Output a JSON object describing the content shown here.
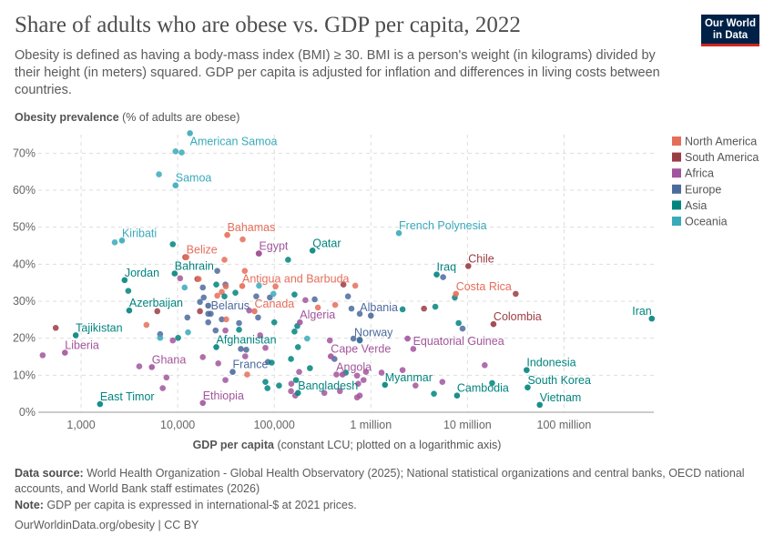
{
  "header": {
    "title": "Share of adults who are obese vs. GDP per capita, 2022",
    "subtitle": "Obesity is defined as having a body-mass index (BMI) ≥ 30. BMI is a person's weight (in kilograms) divided by their height (in meters) squared. GDP per capita is adjusted for inflation and differences in living costs between countries.",
    "logo_text": "Our World in Data"
  },
  "footer": {
    "source_label": "Data source:",
    "source": "World Health Organization - Global Health Observatory (2025); National statistical organizations and central banks, OECD national accounts, and World Bank staff estimates (2026)",
    "note_label": "Note:",
    "note": "GDP per capita is expressed in international-$ at 2021 prices.",
    "url": "OurWorldinData.org/obesity | CC BY"
  },
  "chart_data": {
    "type": "scatter",
    "title": "Share of adults who are obese vs. GDP per capita, 2022",
    "ylabel_bold": "Obesity prevalence",
    "ylabel_rest": "(% of adults are obese)",
    "xlabel_bold": "GDP per capita",
    "xlabel_rest": "(constant LCU; plotted on a logarithmic axis)",
    "x_scale": "log",
    "xlim": [
      360,
      850000000
    ],
    "ylim": [
      0,
      75
    ],
    "x_ticks": [
      {
        "v": 1000,
        "label": "1,000"
      },
      {
        "v": 10000,
        "label": "10,000"
      },
      {
        "v": 100000,
        "label": "100,000"
      },
      {
        "v": 1000000,
        "label": "1 million"
      },
      {
        "v": 10000000,
        "label": "10 million"
      },
      {
        "v": 100000000,
        "label": "100 million"
      }
    ],
    "y_ticks": [
      {
        "v": 0,
        "label": "0%"
      },
      {
        "v": 10,
        "label": "10%"
      },
      {
        "v": 20,
        "label": "20%"
      },
      {
        "v": 30,
        "label": "30%"
      },
      {
        "v": 40,
        "label": "40%"
      },
      {
        "v": 50,
        "label": "50%"
      },
      {
        "v": 60,
        "label": "60%"
      },
      {
        "v": 70,
        "label": "70%"
      }
    ],
    "grid": true,
    "legend_position": "right",
    "legend": [
      {
        "key": "NA",
        "name": "North America",
        "color": "#E56E5A"
      },
      {
        "key": "SA",
        "name": "South America",
        "color": "#9A3C43"
      },
      {
        "key": "AF",
        "name": "Africa",
        "color": "#A2559C"
      },
      {
        "key": "EU",
        "name": "Europe",
        "color": "#4C6A9C"
      },
      {
        "key": "AS",
        "name": "Asia",
        "color": "#00847E"
      },
      {
        "key": "OC",
        "name": "Oceania",
        "color": "#38AABA"
      }
    ],
    "labeled_points": [
      {
        "label": "American Samoa",
        "x": 13400,
        "y": 75.4,
        "region": "OC"
      },
      {
        "label": "Samoa",
        "x": 9500,
        "y": 61.3,
        "region": "OC"
      },
      {
        "label": "Kiribati",
        "x": 2650,
        "y": 46.4,
        "region": "OC"
      },
      {
        "label": "Bahamas",
        "x": 32600,
        "y": 47.9,
        "region": "NA"
      },
      {
        "label": "Belize",
        "x": 12300,
        "y": 41.9,
        "region": "NA"
      },
      {
        "label": "Egypt",
        "x": 69500,
        "y": 42.9,
        "region": "AF"
      },
      {
        "label": "Qatar",
        "x": 249000,
        "y": 43.7,
        "region": "AS"
      },
      {
        "label": "Jordan",
        "x": 2820,
        "y": 35.7,
        "region": "AS"
      },
      {
        "label": "Bahrain",
        "x": 9300,
        "y": 37.5,
        "region": "AS"
      },
      {
        "label": "Antigua and Barbuda",
        "x": 46600,
        "y": 34.1,
        "region": "NA"
      },
      {
        "label": "Azerbaijan",
        "x": 3150,
        "y": 27.5,
        "region": "AS"
      },
      {
        "label": "Belarus",
        "x": 20700,
        "y": 28.8,
        "region": "EU"
      },
      {
        "label": "Canada",
        "x": 62400,
        "y": 27.3,
        "region": "NA"
      },
      {
        "label": "Algeria",
        "x": 184000,
        "y": 24.3,
        "region": "AF"
      },
      {
        "label": "Tajikistan",
        "x": 880,
        "y": 20.8,
        "region": "AS"
      },
      {
        "label": "Liberia",
        "x": 680,
        "y": 16.1,
        "region": "AF"
      },
      {
        "label": "Ghana",
        "x": 5400,
        "y": 12.2,
        "region": "AF"
      },
      {
        "label": "Afghanistan",
        "x": 25100,
        "y": 17.6,
        "region": "AS"
      },
      {
        "label": "France",
        "x": 37100,
        "y": 10.9,
        "region": "EU"
      },
      {
        "label": "East Timor",
        "x": 1570,
        "y": 2.2,
        "region": "AS"
      },
      {
        "label": "Ethiopia",
        "x": 18200,
        "y": 2.5,
        "region": "AF"
      },
      {
        "label": "Bangladesh",
        "x": 176000,
        "y": 5.2,
        "region": "AS"
      },
      {
        "label": "Angola",
        "x": 509000,
        "y": 10.2,
        "region": "AF"
      },
      {
        "label": "Cape Verde",
        "x": 385000,
        "y": 15.1,
        "region": "AF"
      },
      {
        "label": "Norway",
        "x": 767000,
        "y": 19.6,
        "region": "EU"
      },
      {
        "label": "Albania",
        "x": 1000000,
        "y": 26.1,
        "region": "EU"
      },
      {
        "label": "French Polynesia",
        "x": 1950000,
        "y": 48.4,
        "region": "OC"
      },
      {
        "label": "Chile",
        "x": 10200000,
        "y": 39.5,
        "region": "SA"
      },
      {
        "label": "Iraq",
        "x": 4800000,
        "y": 37.2,
        "region": "AS"
      },
      {
        "label": "Costa Rica",
        "x": 7600000,
        "y": 32.0,
        "region": "NA"
      },
      {
        "label": "Colombia",
        "x": 18600000,
        "y": 23.8,
        "region": "SA"
      },
      {
        "label": "Iran",
        "x": 810000000,
        "y": 25.3,
        "region": "AS"
      },
      {
        "label": "Equatorial Guinea",
        "x": 2400000,
        "y": 19.9,
        "region": "AF"
      },
      {
        "label": "Myanmar",
        "x": 1400000,
        "y": 7.4,
        "region": "AS"
      },
      {
        "label": "Cambodia",
        "x": 7800000,
        "y": 4.5,
        "region": "AS"
      },
      {
        "label": "Indonesia",
        "x": 41000000,
        "y": 11.4,
        "region": "AS"
      },
      {
        "label": "South Korea",
        "x": 42000000,
        "y": 6.7,
        "region": "AS"
      },
      {
        "label": "Vietnam",
        "x": 56000000,
        "y": 2.0,
        "region": "AS"
      }
    ],
    "other_points": [
      [
        9500,
        70.5,
        "OC"
      ],
      [
        11000,
        70.2,
        "OC"
      ],
      [
        6400,
        64.3,
        "OC"
      ],
      [
        2230,
        45.9,
        "OC"
      ],
      [
        8900,
        45.4,
        "AS"
      ],
      [
        47100,
        46.7,
        "NA"
      ],
      [
        69000,
        42.9,
        "SA"
      ],
      [
        12000,
        41.9,
        "SA"
      ],
      [
        30500,
        41.2,
        "NA"
      ],
      [
        139000,
        41.2,
        "AS"
      ],
      [
        25700,
        38.2,
        "EU"
      ],
      [
        49500,
        38.2,
        "NA"
      ],
      [
        10600,
        36.2,
        "AF"
      ],
      [
        16000,
        36.0,
        "SA"
      ],
      [
        16500,
        36.0,
        "NA"
      ],
      [
        18200,
        33.7,
        "EU"
      ],
      [
        11800,
        33.7,
        "OC"
      ],
      [
        25100,
        34.5,
        "AS"
      ],
      [
        31200,
        34.5,
        "EU"
      ],
      [
        31500,
        34.0,
        "NA"
      ],
      [
        69500,
        34.2,
        "OC"
      ],
      [
        103000,
        34.0,
        "NA"
      ],
      [
        520000,
        34.5,
        "SA"
      ],
      [
        690000,
        34.2,
        "NA"
      ],
      [
        3080,
        32.8,
        "AS"
      ],
      [
        25700,
        31.5,
        "NA"
      ],
      [
        28600,
        32.5,
        "NA"
      ],
      [
        30500,
        31.3,
        "AS"
      ],
      [
        39600,
        32.3,
        "AS"
      ],
      [
        65100,
        31.3,
        "EU"
      ],
      [
        90000,
        31.0,
        "EU"
      ],
      [
        98000,
        32.0,
        "OC"
      ],
      [
        162000,
        31.8,
        "AS"
      ],
      [
        210000,
        30.3,
        "AF"
      ],
      [
        262000,
        30.5,
        "EU"
      ],
      [
        580000,
        31.3,
        "EU"
      ],
      [
        283000,
        28.3,
        "NA"
      ],
      [
        427000,
        29.0,
        "NA"
      ],
      [
        630000,
        28.0,
        "EU"
      ],
      [
        767000,
        26.6,
        "EU"
      ],
      [
        17000,
        29.8,
        "EU"
      ],
      [
        18600,
        31.0,
        "EU"
      ],
      [
        17000,
        27.3,
        "SA"
      ],
      [
        6150,
        27.3,
        "SA"
      ],
      [
        12600,
        25.6,
        "EU"
      ],
      [
        20700,
        26.6,
        "EU"
      ],
      [
        22000,
        26.6,
        "EU"
      ],
      [
        28600,
        25.1,
        "EU"
      ],
      [
        31800,
        25.1,
        "NA"
      ],
      [
        55000,
        27.5,
        "AF"
      ],
      [
        68000,
        25.6,
        "EU"
      ],
      [
        100000,
        24.3,
        "AS"
      ],
      [
        173000,
        23.3,
        "AS"
      ],
      [
        4750,
        23.6,
        "NA"
      ],
      [
        546,
        22.8,
        "SA"
      ],
      [
        6580,
        21.1,
        "EU"
      ],
      [
        6580,
        20.1,
        "OC"
      ],
      [
        10100,
        20.1,
        "AS"
      ],
      [
        8900,
        19.4,
        "AF"
      ],
      [
        12800,
        21.6,
        "OC"
      ],
      [
        20700,
        24.3,
        "EU"
      ],
      [
        24700,
        22.1,
        "EU"
      ],
      [
        31200,
        22.1,
        "AF"
      ],
      [
        43200,
        24.1,
        "EU"
      ],
      [
        43200,
        22.3,
        "AS"
      ],
      [
        71400,
        20.8,
        "AF"
      ],
      [
        162000,
        21.8,
        "AS"
      ],
      [
        219000,
        19.9,
        "OC"
      ],
      [
        376000,
        19.4,
        "AF"
      ],
      [
        660000,
        19.9,
        "EU"
      ],
      [
        767000,
        19.4,
        "AS"
      ],
      [
        45100,
        17.1,
        "EU"
      ],
      [
        51300,
        16.9,
        "EU"
      ],
      [
        50000,
        15.1,
        "AF"
      ],
      [
        81000,
        17.4,
        "AF"
      ],
      [
        176000,
        17.6,
        "AS"
      ],
      [
        18200,
        14.9,
        "AF"
      ],
      [
        26300,
        13.2,
        "AF"
      ],
      [
        4000,
        12.4,
        "AF"
      ],
      [
        7650,
        9.4,
        "AF"
      ],
      [
        7000,
        6.5,
        "AF"
      ],
      [
        400,
        15.4,
        "AF"
      ],
      [
        52400,
        10.2,
        "NA"
      ],
      [
        31200,
        8.7,
        "AF"
      ],
      [
        86000,
        13.6,
        "EU"
      ],
      [
        94000,
        13.4,
        "AS"
      ],
      [
        81000,
        8.2,
        "AS"
      ],
      [
        85000,
        6.5,
        "AS"
      ],
      [
        112000,
        7.2,
        "AS"
      ],
      [
        149000,
        14.4,
        "AS"
      ],
      [
        181000,
        10.9,
        "AF"
      ],
      [
        168000,
        8.7,
        "AS"
      ],
      [
        150000,
        7.7,
        "AF"
      ],
      [
        149000,
        5.7,
        "AF"
      ],
      [
        165000,
        4.5,
        "AF"
      ],
      [
        234000,
        11.9,
        "AS"
      ],
      [
        420000,
        14.4,
        "EU"
      ],
      [
        440000,
        10.2,
        "AF"
      ],
      [
        550000,
        10.7,
        "AS"
      ],
      [
        720000,
        9.9,
        "AF"
      ],
      [
        840000,
        8.7,
        "AF"
      ],
      [
        740000,
        7.7,
        "AF"
      ],
      [
        890000,
        10.9,
        "AF"
      ],
      [
        330000,
        5.2,
        "AF"
      ],
      [
        478000,
        5.7,
        "AF"
      ],
      [
        720000,
        4.0,
        "AF"
      ],
      [
        767000,
        4.5,
        "AF"
      ],
      [
        1290000,
        10.7,
        "AF"
      ],
      [
        2130000,
        27.8,
        "AS"
      ],
      [
        3550000,
        28.0,
        "SA"
      ],
      [
        4650000,
        28.5,
        "AS"
      ],
      [
        5600000,
        36.5,
        "EU"
      ],
      [
        7400000,
        31.0,
        "AS"
      ],
      [
        31600000,
        32.0,
        "SA"
      ],
      [
        8100000,
        24.1,
        "AS"
      ],
      [
        8900000,
        22.6,
        "EU"
      ],
      [
        2750000,
        17.1,
        "AF"
      ],
      [
        15100000,
        12.7,
        "AF"
      ],
      [
        2130000,
        11.4,
        "AF"
      ],
      [
        2900000,
        7.2,
        "AF"
      ],
      [
        5500000,
        8.2,
        "AF"
      ],
      [
        4500000,
        5.0,
        "AS"
      ],
      [
        18000000,
        7.9,
        "AS"
      ]
    ]
  }
}
